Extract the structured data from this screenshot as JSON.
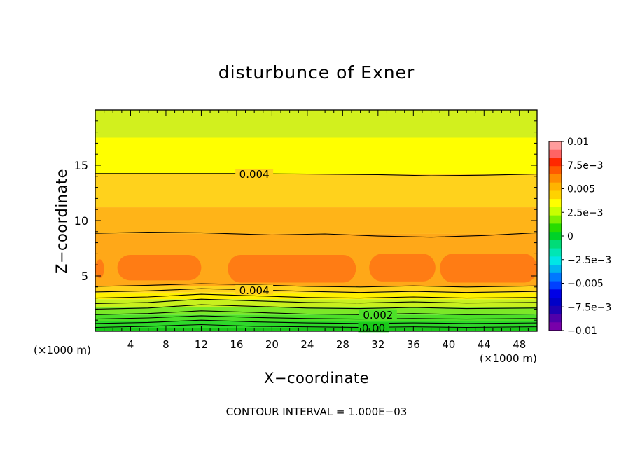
{
  "chart_data": {
    "type": "heatmap",
    "title": "disturbunce of Exner",
    "xlabel": "X−coordinate",
    "ylabel": "Z−coordinate",
    "x_unit": "(×1000 m)",
    "y_unit": "(×1000 m)",
    "xlim": [
      0,
      50
    ],
    "ylim": [
      0,
      20
    ],
    "x_ticks": [
      4,
      8,
      12,
      16,
      20,
      24,
      28,
      32,
      36,
      40,
      44,
      48
    ],
    "y_ticks": [
      5,
      10,
      15
    ],
    "footer": "CONTOUR INTERVAL = 1.000E−03",
    "contour_interval": 0.001,
    "z_bands": [
      {
        "z0": 0.0,
        "z1": 0.3,
        "value": 0.0,
        "color": "#18c818"
      },
      {
        "z0": 0.3,
        "z1": 0.9,
        "value": 0.0005,
        "color": "#2ed82a"
      },
      {
        "z0": 0.9,
        "z1": 1.5,
        "value": 0.001,
        "color": "#4ce028"
      },
      {
        "z0": 1.5,
        "z1": 2.2,
        "value": 0.002,
        "color": "#7ce828"
      },
      {
        "z0": 2.2,
        "z1": 2.9,
        "value": 0.003,
        "color": "#c8f01e"
      },
      {
        "z0": 2.9,
        "z1": 3.5,
        "value": 0.0035,
        "color": "#fff000"
      },
      {
        "z0": 3.5,
        "z1": 4.1,
        "value": 0.004,
        "color": "#ffd21c"
      },
      {
        "z0": 4.1,
        "z1": 8.8,
        "value": 0.005,
        "color": "#ffa818"
      },
      {
        "z0": 8.8,
        "z1": 11.2,
        "value": 0.0045,
        "color": "#ffb418"
      },
      {
        "z0": 11.2,
        "z1": 14.2,
        "value": 0.004,
        "color": "#ffd21c"
      },
      {
        "z0": 14.2,
        "z1": 17.5,
        "value": 0.003,
        "color": "#ffff00"
      },
      {
        "z0": 17.5,
        "z1": 20.0,
        "value": 0.0025,
        "color": "#d2f01e"
      }
    ],
    "high_patches": [
      {
        "x0": 0.0,
        "x1": 1.0,
        "z0": 4.8,
        "z1": 6.5,
        "value": 0.0055
      },
      {
        "x0": 2.5,
        "x1": 12.0,
        "z0": 4.6,
        "z1": 6.9,
        "value": 0.0055
      },
      {
        "x0": 15.0,
        "x1": 29.5,
        "z0": 4.4,
        "z1": 6.9,
        "value": 0.0055
      },
      {
        "x0": 31.0,
        "x1": 38.5,
        "z0": 4.5,
        "z1": 7.0,
        "value": 0.0055
      },
      {
        "x0": 39.0,
        "x1": 50.0,
        "z0": 4.4,
        "z1": 7.0,
        "value": 0.0055
      }
    ],
    "patch_color": "#ff7c14",
    "contours": [
      {
        "label": "0.00",
        "label_x": 31.5,
        "points": [
          [
            0,
            0.35
          ],
          [
            6,
            0.45
          ],
          [
            12,
            0.6
          ],
          [
            18,
            0.45
          ],
          [
            24,
            0.4
          ],
          [
            30,
            0.35
          ],
          [
            36,
            0.4
          ],
          [
            42,
            0.35
          ],
          [
            50,
            0.4
          ]
        ]
      },
      {
        "label": "",
        "points": [
          [
            0,
            0.7
          ],
          [
            6,
            0.8
          ],
          [
            12,
            1.0
          ],
          [
            18,
            0.85
          ],
          [
            24,
            0.75
          ],
          [
            30,
            0.7
          ],
          [
            36,
            0.75
          ],
          [
            42,
            0.7
          ],
          [
            50,
            0.75
          ]
        ]
      },
      {
        "label": "",
        "points": [
          [
            0,
            1.1
          ],
          [
            6,
            1.2
          ],
          [
            12,
            1.4
          ],
          [
            18,
            1.25
          ],
          [
            24,
            1.15
          ],
          [
            30,
            1.1
          ],
          [
            36,
            1.15
          ],
          [
            42,
            1.1
          ],
          [
            50,
            1.15
          ]
        ]
      },
      {
        "label": "0.002",
        "label_x": 32.0,
        "points": [
          [
            0,
            1.5
          ],
          [
            6,
            1.6
          ],
          [
            12,
            1.85
          ],
          [
            18,
            1.7
          ],
          [
            24,
            1.55
          ],
          [
            30,
            1.5
          ],
          [
            36,
            1.6
          ],
          [
            42,
            1.5
          ],
          [
            50,
            1.55
          ]
        ]
      },
      {
        "label": "",
        "points": [
          [
            0,
            2.0
          ],
          [
            6,
            2.1
          ],
          [
            12,
            2.4
          ],
          [
            18,
            2.25
          ],
          [
            24,
            2.1
          ],
          [
            30,
            2.05
          ],
          [
            36,
            2.15
          ],
          [
            42,
            2.05
          ],
          [
            50,
            2.1
          ]
        ]
      },
      {
        "label": "",
        "points": [
          [
            0,
            2.5
          ],
          [
            6,
            2.6
          ],
          [
            12,
            2.9
          ],
          [
            18,
            2.75
          ],
          [
            24,
            2.6
          ],
          [
            30,
            2.55
          ],
          [
            36,
            2.65
          ],
          [
            42,
            2.55
          ],
          [
            50,
            2.6
          ]
        ]
      },
      {
        "label": "",
        "points": [
          [
            0,
            3.0
          ],
          [
            6,
            3.1
          ],
          [
            12,
            3.35
          ],
          [
            18,
            3.2
          ],
          [
            24,
            3.05
          ],
          [
            30,
            3.0
          ],
          [
            36,
            3.1
          ],
          [
            42,
            3.0
          ],
          [
            50,
            3.05
          ]
        ]
      },
      {
        "label": "0.004",
        "label_x": 18.0,
        "points": [
          [
            0,
            3.55
          ],
          [
            6,
            3.65
          ],
          [
            12,
            3.85
          ],
          [
            18,
            3.75
          ],
          [
            24,
            3.6
          ],
          [
            30,
            3.5
          ],
          [
            36,
            3.6
          ],
          [
            42,
            3.5
          ],
          [
            50,
            3.6
          ]
        ]
      },
      {
        "label": "",
        "points": [
          [
            0,
            4.05
          ],
          [
            6,
            4.15
          ],
          [
            12,
            4.3
          ],
          [
            18,
            4.2
          ],
          [
            24,
            4.05
          ],
          [
            30,
            4.0
          ],
          [
            36,
            4.1
          ],
          [
            42,
            4.0
          ],
          [
            50,
            4.1
          ]
        ]
      },
      {
        "label": "",
        "points": [
          [
            0,
            8.85
          ],
          [
            6,
            8.95
          ],
          [
            12,
            8.9
          ],
          [
            20,
            8.7
          ],
          [
            26,
            8.8
          ],
          [
            32,
            8.6
          ],
          [
            38,
            8.5
          ],
          [
            44,
            8.65
          ],
          [
            50,
            8.9
          ]
        ]
      },
      {
        "label": "0.004",
        "label_x": 18.0,
        "points": [
          [
            0,
            14.25
          ],
          [
            8,
            14.25
          ],
          [
            16,
            14.25
          ],
          [
            24,
            14.2
          ],
          [
            32,
            14.15
          ],
          [
            38,
            14.05
          ],
          [
            44,
            14.1
          ],
          [
            50,
            14.2
          ]
        ]
      }
    ],
    "colorbar": {
      "min": -0.01,
      "max": 0.01,
      "tick_labels": [
        "0.01",
        "7.5e−3",
        "0.005",
        "2.5e−3",
        "0",
        "−2.5e−3",
        "−0.005",
        "−7.5e−3",
        "−0.01"
      ],
      "tick_values": [
        0.01,
        0.0075,
        0.005,
        0.0025,
        0,
        -0.0025,
        -0.005,
        -0.0075,
        -0.01
      ],
      "colors_top_to_bottom": [
        "#ff9c9c",
        "#ff6464",
        "#ff2800",
        "#ff5a00",
        "#ff8c00",
        "#ffb400",
        "#ffd200",
        "#ffff00",
        "#c8ff00",
        "#7cf000",
        "#28dc00",
        "#00d228",
        "#00dc78",
        "#00e6b4",
        "#00e6e6",
        "#00b4f0",
        "#0078ff",
        "#0040ff",
        "#0000e6",
        "#0000c8",
        "#1e00b4",
        "#5000aa",
        "#7800aa"
      ]
    }
  }
}
